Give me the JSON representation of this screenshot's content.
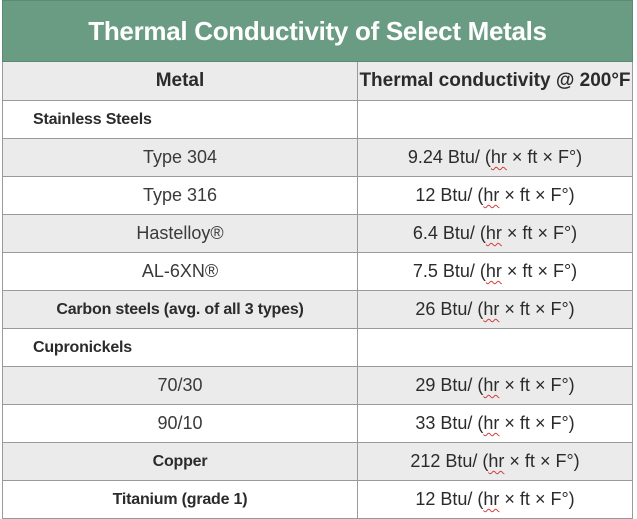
{
  "title": "Thermal Conductivity of Select Metals",
  "headers": {
    "metal": "Metal",
    "conductivity": "Thermal conductivity @ 200°F"
  },
  "rows": [
    {
      "metal": "Stainless Steels",
      "kind": "group-left",
      "value_pre": "",
      "value_hr": "",
      "value_post": "",
      "shade": false
    },
    {
      "metal": "Type 304",
      "kind": "sub",
      "value_pre": "9.24 Btu/ (",
      "value_hr": "hr",
      "value_post": " × ft × F°)",
      "shade": true
    },
    {
      "metal": "Type 316",
      "kind": "sub",
      "value_pre": "12 Btu/ (",
      "value_hr": "hr",
      "value_post": " × ft × F°)",
      "shade": false
    },
    {
      "metal": "Hastelloy®",
      "kind": "sub",
      "value_pre": "6.4 Btu/ (",
      "value_hr": "hr",
      "value_post": " × ft × F°)",
      "shade": true
    },
    {
      "metal": "AL-6XN®",
      "kind": "sub",
      "value_pre": "7.5 Btu/ (",
      "value_hr": "hr",
      "value_post": " × ft × F°)",
      "shade": false
    },
    {
      "metal": "Carbon steels (avg. of all 3 types)",
      "kind": "group",
      "value_pre": "26 Btu/ (",
      "value_hr": "hr",
      "value_post": " × ft × F°)",
      "shade": true
    },
    {
      "metal": "Cupronickels",
      "kind": "group-left",
      "value_pre": "",
      "value_hr": "",
      "value_post": "",
      "shade": false
    },
    {
      "metal": "70/30",
      "kind": "sub",
      "value_pre": "29 Btu/ (",
      "value_hr": "hr",
      "value_post": " × ft × F°)",
      "shade": true
    },
    {
      "metal": "90/10",
      "kind": "sub",
      "value_pre": "33 Btu/ (",
      "value_hr": "hr",
      "value_post": " × ft × F°)",
      "shade": false
    },
    {
      "metal": "Copper",
      "kind": "group",
      "value_pre": "212 Btu/ (",
      "value_hr": "hr",
      "value_post": " × ft × F°)",
      "shade": true
    },
    {
      "metal": "Titanium (grade 1)",
      "kind": "group",
      "value_pre": "12 Btu/ (",
      "value_hr": "hr",
      "value_post": " × ft × F°)",
      "shade": false
    }
  ]
}
